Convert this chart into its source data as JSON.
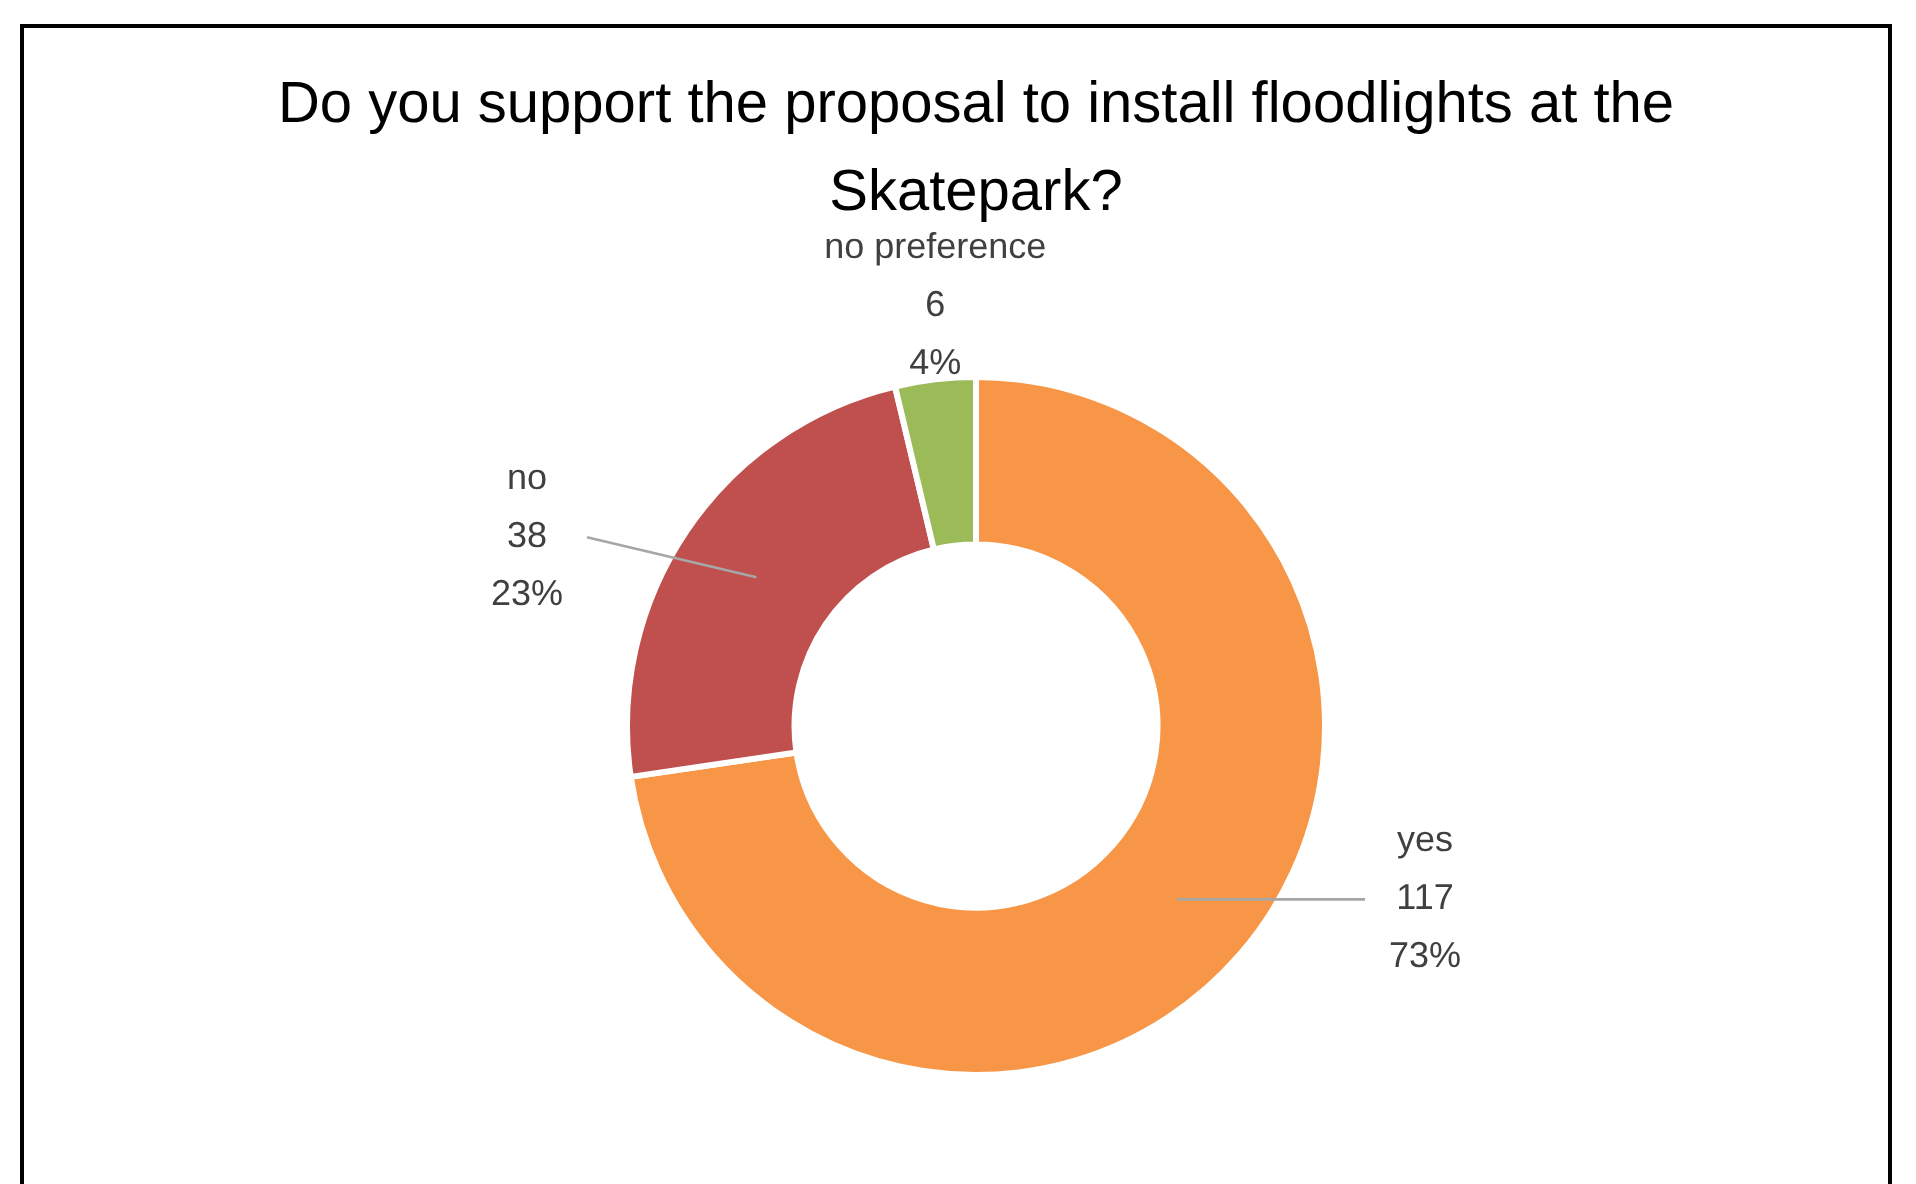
{
  "chart_data": {
    "type": "donut",
    "title": "Do you support the proposal to install floodlights at the Skatepark?",
    "categories": [
      "yes",
      "no",
      "no preference"
    ],
    "values": [
      117,
      38,
      6
    ],
    "colors": [
      "#f79646",
      "#c0504d",
      "#9bbb59"
    ],
    "value_labels": [
      "117\n73%",
      "38\n23%",
      "6\n4%"
    ],
    "legend": false
  }
}
